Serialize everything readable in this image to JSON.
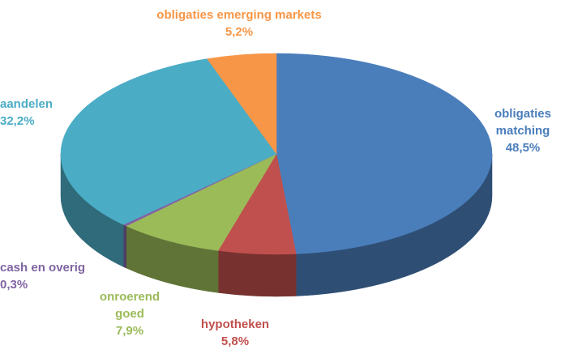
{
  "chart_data": {
    "type": "pie",
    "categories": [
      "obligaties matching",
      "hypotheken",
      "onroerend goed",
      "cash en overig",
      "aandelen",
      "obligaties emerging markets"
    ],
    "values": [
      48.5,
      5.8,
      7.9,
      0.3,
      32.2,
      5.2
    ],
    "value_labels": [
      "48,5%",
      "5,8%",
      "7,9%",
      "0,3%",
      "32,2%",
      "5,2%"
    ],
    "colors": [
      "#4a7ebb",
      "#c0504d",
      "#9bbb59",
      "#8064a2",
      "#4bacc6",
      "#f79646"
    ]
  }
}
